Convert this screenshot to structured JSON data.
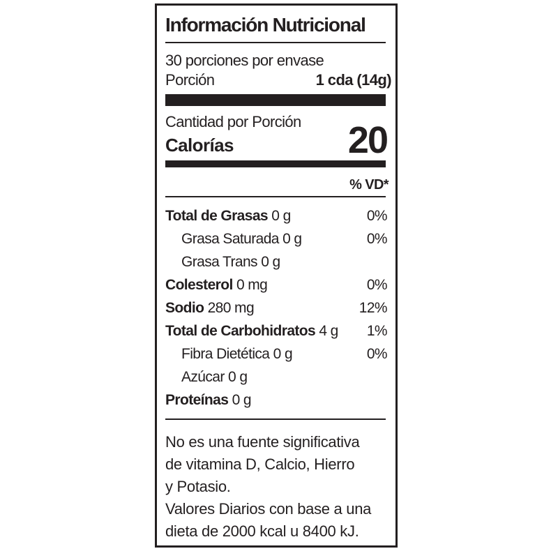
{
  "title": "Información Nutricional",
  "servings": "30 porciones por envase",
  "serving_size_label": "Porción",
  "serving_size": "1 cda (14g)",
  "amount_per_serving": "Cantidad por Porción",
  "calories_label": "Calorías",
  "calories": 20,
  "dv_header": "% VD*",
  "nutrients": [
    {
      "name": "Total de Grasas",
      "amount": "0 g",
      "dv": "0%"
    },
    {
      "name": "Grasa Saturada",
      "amount": "0 g",
      "dv": "0%"
    },
    {
      "name": "Grasa Trans",
      "amount": "0 g"
    },
    {
      "name": "Colesterol",
      "amount": "0 mg",
      "dv": "0%"
    },
    {
      "name": "Sodio",
      "amount": "280 mg",
      "dv": "12%"
    },
    {
      "name": "Total de Carbohidratos",
      "amount": "4 g",
      "dv": "1%"
    },
    {
      "name": "Fibra Dietética",
      "amount": "0 g",
      "dv": "0%"
    },
    {
      "name": "Azúcar",
      "amount": "0 g"
    },
    {
      "name": "Proteínas",
      "amount": "0 g"
    }
  ],
  "footnote": [
    "No es una fuente significativa",
    "de vitamina D, Calcio, Hierro",
    "y Potasio.",
    "Valores Diarios con base a una",
    "dieta de 2000 kcal u 8400 kJ."
  ]
}
